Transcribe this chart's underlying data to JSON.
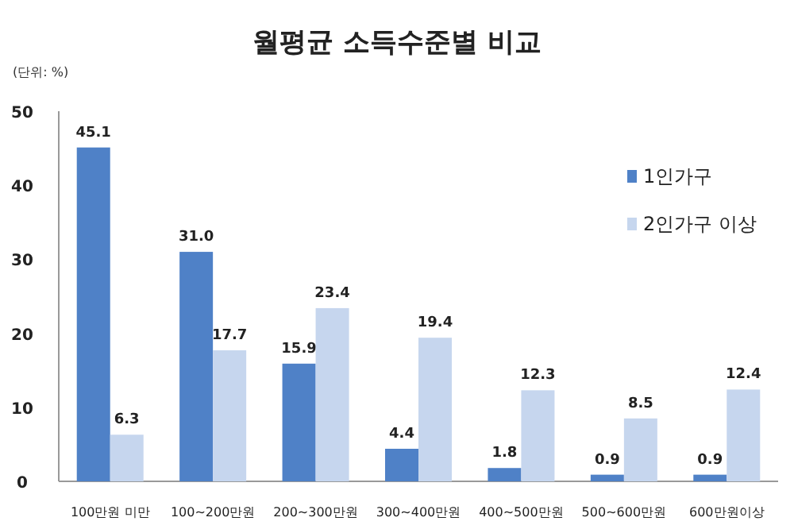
{
  "chart_data": {
    "type": "bar",
    "title": "월평균 소득수준별 비교",
    "annotations": [
      "(단위: %)"
    ],
    "categories": [
      "100만원 미만",
      "100~200만원",
      "200~300만원",
      "300~400만원",
      "400~500만원",
      "500~600만원",
      "600만원이상"
    ],
    "series": [
      {
        "name": "1인가구",
        "color": "#4f81c7",
        "values": [
          45.1,
          31.0,
          15.9,
          4.4,
          1.8,
          0.9,
          0.9
        ],
        "value_labels": [
          "45.1",
          "31.0",
          "15.9",
          "4.4",
          "1.8",
          "0.9",
          "0.9"
        ]
      },
      {
        "name": "2인가구 이상",
        "color": "#c6d6ee",
        "values": [
          6.3,
          17.7,
          23.4,
          19.4,
          12.3,
          8.5,
          12.4
        ],
        "value_labels": [
          "6.3",
          "17.7",
          "23.4",
          "19.4",
          "12.3",
          "8.5",
          "12.4"
        ]
      }
    ],
    "ylim": [
      0,
      50
    ],
    "yticks": [
      0,
      10,
      20,
      30,
      40,
      50
    ],
    "legend": "top right",
    "grid": false
  }
}
